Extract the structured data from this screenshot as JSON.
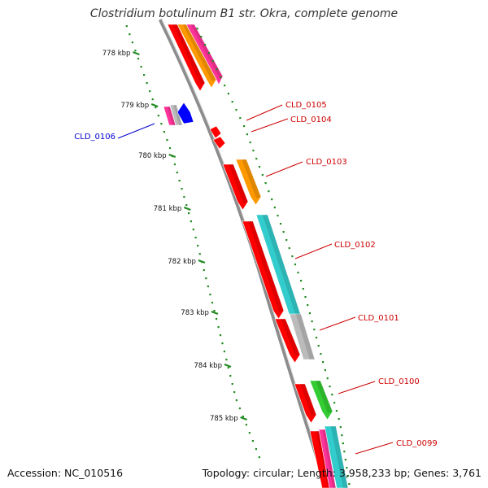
{
  "title": "Clostridium botulinum B1 str. Okra, complete genome",
  "footer": {
    "accession": "Accession: NC_010516",
    "summary": "Topology: circular; Length: 3,958,233 bp; Genes: 3,761"
  },
  "colors": {
    "backbone": "#8c8c8c",
    "ruler": "#228b22",
    "forward_label": "#cc0000",
    "reverse_label": "#0000cc",
    "cds": "#ff0000",
    "magenta": "#ff3399",
    "orange": "#ff9900",
    "cyan": "#33cccc",
    "green": "#33cc33",
    "grey": "#bbbbbb",
    "blue": "#0000ff"
  },
  "ruler": {
    "ticks": [
      {
        "label": "778 kbp",
        "kbp": 778
      },
      {
        "label": "779 kbp",
        "kbp": 779
      },
      {
        "label": "780 kbp",
        "kbp": 780
      },
      {
        "label": "781 kbp",
        "kbp": 781
      },
      {
        "label": "782 kbp",
        "kbp": 782
      },
      {
        "label": "783 kbp",
        "kbp": 783
      },
      {
        "label": "784 kbp",
        "kbp": 784
      },
      {
        "label": "785 kbp",
        "kbp": 785
      }
    ]
  },
  "genes": [
    {
      "id": "CLD_0106",
      "strand": "reverse"
    },
    {
      "id": "CLD_0105",
      "strand": "forward"
    },
    {
      "id": "CLD_0104",
      "strand": "forward"
    },
    {
      "id": "CLD_0103",
      "strand": "forward"
    },
    {
      "id": "CLD_0102",
      "strand": "forward"
    },
    {
      "id": "CLD_0101",
      "strand": "forward"
    },
    {
      "id": "CLD_0100",
      "strand": "forward"
    },
    {
      "id": "CLD_0099",
      "strand": "forward"
    }
  ]
}
